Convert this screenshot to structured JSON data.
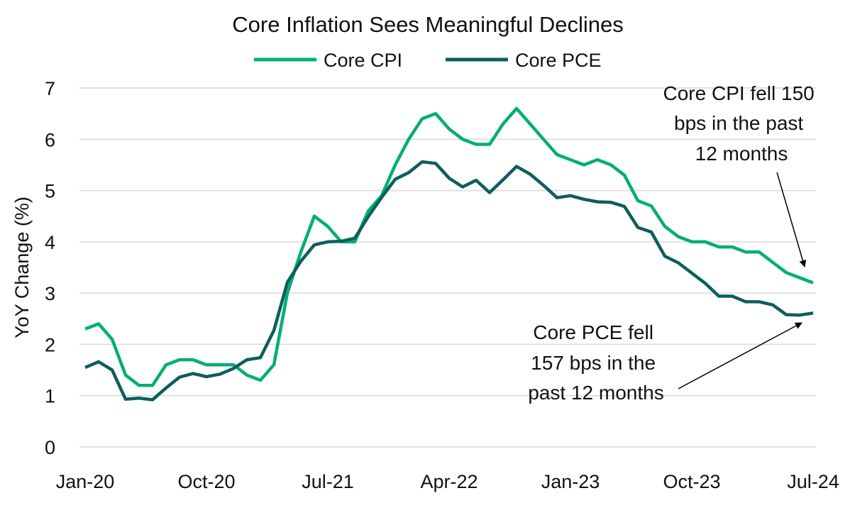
{
  "chart_data": {
    "type": "line",
    "title": "Core Inflation Sees Meaningful Declines",
    "xlabel": "",
    "ylabel": "YoY Change (%)",
    "ylim": [
      0,
      7
    ],
    "yticks": [
      "0",
      "1",
      "2",
      "3",
      "4",
      "5",
      "6",
      "7"
    ],
    "xticks": [
      "Jan-20",
      "Oct-20",
      "Jul-21",
      "Apr-22",
      "Jan-23",
      "Oct-23",
      "Jul-24"
    ],
    "grid": true,
    "legend_position": "top",
    "x_start": "Jan-20",
    "x_end": "Jul-24",
    "frequency": "monthly",
    "series": [
      {
        "name": "Core CPI",
        "color": "#00b06b",
        "values": [
          2.3,
          2.4,
          2.1,
          1.4,
          1.2,
          1.2,
          1.6,
          1.7,
          1.7,
          1.6,
          1.6,
          1.6,
          1.4,
          1.3,
          1.6,
          3.0,
          3.8,
          4.5,
          4.3,
          4.0,
          4.0,
          4.6,
          4.9,
          5.5,
          6.0,
          6.4,
          6.5,
          6.2,
          6.0,
          5.9,
          5.9,
          6.3,
          6.6,
          6.3,
          6.0,
          5.7,
          5.6,
          5.5,
          5.6,
          5.5,
          5.3,
          4.8,
          4.7,
          4.3,
          4.1,
          4.0,
          4.0,
          3.9,
          3.9,
          3.8,
          3.8,
          3.6,
          3.4,
          3.3,
          3.2
        ]
      },
      {
        "name": "Core PCE",
        "color": "#0d5e5e",
        "values": [
          1.55,
          1.66,
          1.5,
          0.93,
          0.95,
          0.92,
          1.15,
          1.36,
          1.43,
          1.37,
          1.42,
          1.53,
          1.7,
          1.74,
          2.27,
          3.21,
          3.62,
          3.94,
          4.0,
          4.01,
          4.07,
          4.49,
          4.87,
          5.22,
          5.35,
          5.56,
          5.53,
          5.24,
          5.07,
          5.2,
          4.96,
          5.21,
          5.47,
          5.32,
          5.1,
          4.86,
          4.9,
          4.83,
          4.78,
          4.77,
          4.69,
          4.28,
          4.19,
          3.72,
          3.59,
          3.39,
          3.19,
          2.94,
          2.94,
          2.83,
          2.83,
          2.77,
          2.58,
          2.57,
          2.61
        ]
      }
    ],
    "annotations": [
      {
        "lines": [
          "Core CPI fell 150",
          "bps in the past",
          "12 months"
        ]
      },
      {
        "lines": [
          "Core PCE fell",
          "157 bps in the",
          "past 12 months"
        ]
      }
    ]
  }
}
